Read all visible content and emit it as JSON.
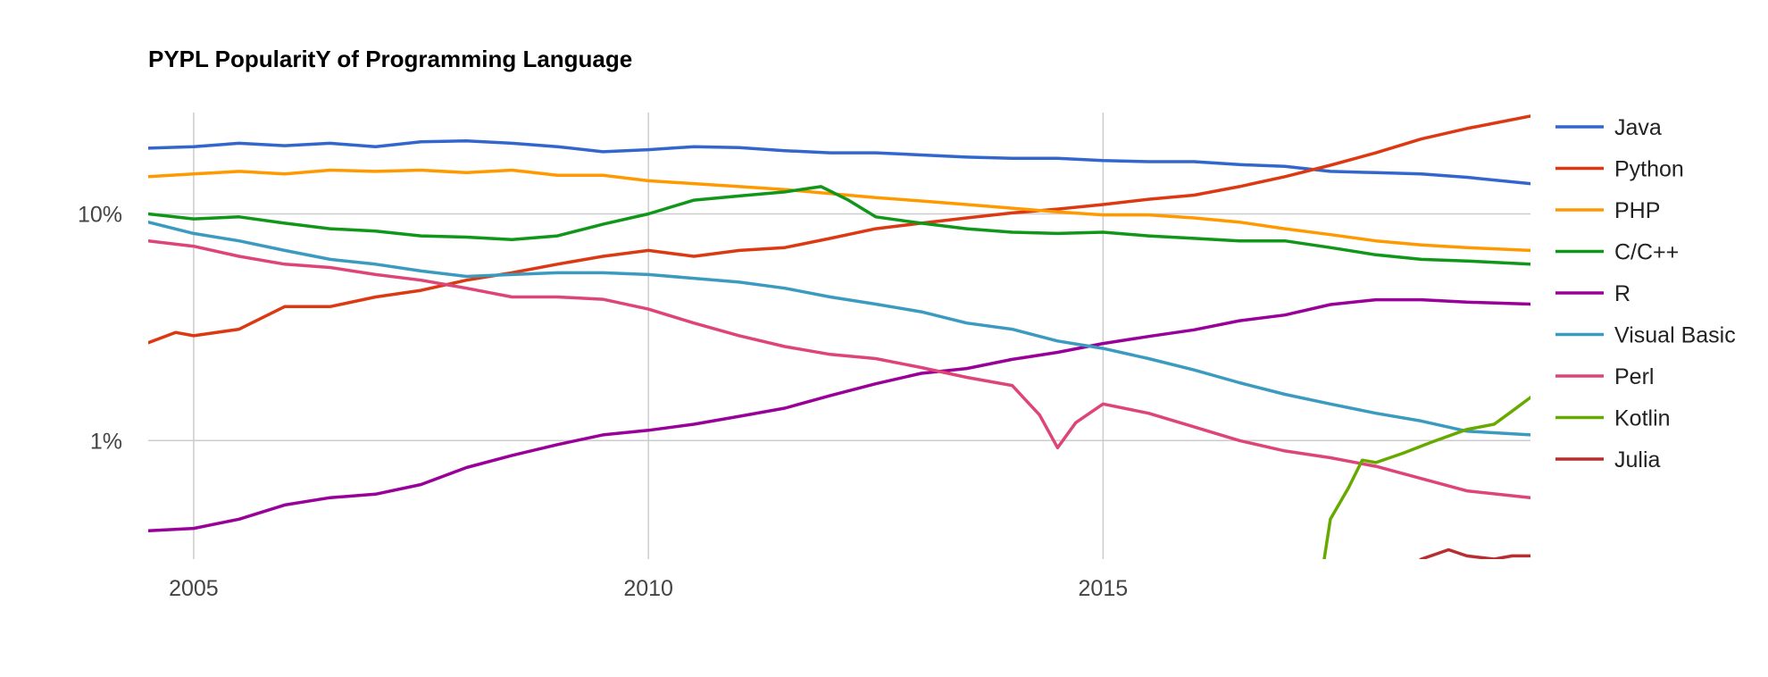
{
  "chart_data": {
    "type": "line",
    "title": "PYPL PopularitY of Programming Language",
    "xlabel": "",
    "ylabel": "",
    "y_scale": "log",
    "x_range": [
      2004.5,
      2019.7
    ],
    "y_range": [
      0.3,
      28
    ],
    "x_ticks": [
      {
        "value": 2005,
        "label": "2005"
      },
      {
        "value": 2010,
        "label": "2010"
      },
      {
        "value": 2015,
        "label": "2015"
      }
    ],
    "y_ticks": [
      {
        "value": 10,
        "label": "10%"
      },
      {
        "value": 1,
        "label": "1%"
      }
    ],
    "grid": true,
    "legend_position": "right",
    "series": [
      {
        "name": "Java",
        "color": "#3366CC",
        "points": [
          [
            2004.5,
            19.5
          ],
          [
            2005,
            19.8
          ],
          [
            2005.5,
            20.5
          ],
          [
            2006,
            20
          ],
          [
            2006.5,
            20.5
          ],
          [
            2007,
            19.8
          ],
          [
            2007.5,
            20.8
          ],
          [
            2008,
            21
          ],
          [
            2008.5,
            20.5
          ],
          [
            2009,
            19.8
          ],
          [
            2009.5,
            18.8
          ],
          [
            2010,
            19.2
          ],
          [
            2010.5,
            19.8
          ],
          [
            2011,
            19.6
          ],
          [
            2011.5,
            19
          ],
          [
            2012,
            18.6
          ],
          [
            2012.5,
            18.6
          ],
          [
            2013,
            18.2
          ],
          [
            2013.5,
            17.8
          ],
          [
            2014,
            17.6
          ],
          [
            2014.5,
            17.6
          ],
          [
            2015,
            17.2
          ],
          [
            2015.5,
            17
          ],
          [
            2016,
            17
          ],
          [
            2016.5,
            16.5
          ],
          [
            2017,
            16.2
          ],
          [
            2017.5,
            15.4
          ],
          [
            2018,
            15.2
          ],
          [
            2018.5,
            15
          ],
          [
            2019,
            14.5
          ],
          [
            2019.7,
            13.6
          ]
        ]
      },
      {
        "name": "Python",
        "color": "#DC3912",
        "points": [
          [
            2004.5,
            2.7
          ],
          [
            2004.8,
            3.0
          ],
          [
            2005,
            2.9
          ],
          [
            2005.5,
            3.1
          ],
          [
            2006,
            3.9
          ],
          [
            2006.5,
            3.9
          ],
          [
            2007,
            4.3
          ],
          [
            2007.5,
            4.6
          ],
          [
            2008,
            5.1
          ],
          [
            2008.5,
            5.5
          ],
          [
            2009,
            6.0
          ],
          [
            2009.5,
            6.5
          ],
          [
            2010,
            6.9
          ],
          [
            2010.5,
            6.5
          ],
          [
            2011,
            6.9
          ],
          [
            2011.5,
            7.1
          ],
          [
            2012,
            7.8
          ],
          [
            2012.5,
            8.6
          ],
          [
            2013,
            9.1
          ],
          [
            2013.5,
            9.6
          ],
          [
            2014,
            10.1
          ],
          [
            2014.5,
            10.5
          ],
          [
            2015,
            11.0
          ],
          [
            2015.5,
            11.6
          ],
          [
            2016,
            12.1
          ],
          [
            2016.5,
            13.2
          ],
          [
            2017,
            14.6
          ],
          [
            2017.5,
            16.4
          ],
          [
            2018,
            18.6
          ],
          [
            2018.5,
            21.4
          ],
          [
            2019,
            23.8
          ],
          [
            2019.7,
            27.0
          ]
        ]
      },
      {
        "name": "PHP",
        "color": "#FF9900",
        "points": [
          [
            2004.5,
            14.6
          ],
          [
            2005,
            15.0
          ],
          [
            2005.5,
            15.4
          ],
          [
            2006,
            15.0
          ],
          [
            2006.5,
            15.6
          ],
          [
            2007,
            15.4
          ],
          [
            2007.5,
            15.6
          ],
          [
            2008,
            15.2
          ],
          [
            2008.5,
            15.6
          ],
          [
            2009,
            14.8
          ],
          [
            2009.5,
            14.8
          ],
          [
            2010,
            14.0
          ],
          [
            2010.5,
            13.6
          ],
          [
            2011,
            13.2
          ],
          [
            2011.5,
            12.8
          ],
          [
            2012,
            12.3
          ],
          [
            2012.5,
            11.8
          ],
          [
            2013,
            11.4
          ],
          [
            2013.5,
            11.0
          ],
          [
            2014,
            10.6
          ],
          [
            2014.5,
            10.2
          ],
          [
            2015,
            9.9
          ],
          [
            2015.5,
            9.9
          ],
          [
            2016,
            9.6
          ],
          [
            2016.5,
            9.2
          ],
          [
            2017,
            8.6
          ],
          [
            2017.5,
            8.1
          ],
          [
            2018,
            7.6
          ],
          [
            2018.5,
            7.3
          ],
          [
            2019,
            7.1
          ],
          [
            2019.7,
            6.9
          ]
        ]
      },
      {
        "name": "C/C++",
        "color": "#109618",
        "points": [
          [
            2004.5,
            10.0
          ],
          [
            2005,
            9.5
          ],
          [
            2005.5,
            9.7
          ],
          [
            2006,
            9.1
          ],
          [
            2006.5,
            8.6
          ],
          [
            2007,
            8.4
          ],
          [
            2007.5,
            8.0
          ],
          [
            2008,
            7.9
          ],
          [
            2008.5,
            7.7
          ],
          [
            2009,
            8.0
          ],
          [
            2009.5,
            9.0
          ],
          [
            2010,
            10.0
          ],
          [
            2010.5,
            11.5
          ],
          [
            2011,
            12.0
          ],
          [
            2011.5,
            12.5
          ],
          [
            2011.9,
            13.2
          ],
          [
            2012.2,
            11.5
          ],
          [
            2012.5,
            9.7
          ],
          [
            2013,
            9.1
          ],
          [
            2013.5,
            8.6
          ],
          [
            2014,
            8.3
          ],
          [
            2014.5,
            8.2
          ],
          [
            2015,
            8.3
          ],
          [
            2015.5,
            8.0
          ],
          [
            2016,
            7.8
          ],
          [
            2016.5,
            7.6
          ],
          [
            2017,
            7.6
          ],
          [
            2017.5,
            7.1
          ],
          [
            2018,
            6.6
          ],
          [
            2018.5,
            6.3
          ],
          [
            2019,
            6.2
          ],
          [
            2019.7,
            6.0
          ]
        ]
      },
      {
        "name": "R",
        "color": "#990099",
        "points": [
          [
            2004.5,
            0.4
          ],
          [
            2005,
            0.41
          ],
          [
            2005.5,
            0.45
          ],
          [
            2006,
            0.52
          ],
          [
            2006.5,
            0.56
          ],
          [
            2007,
            0.58
          ],
          [
            2007.5,
            0.64
          ],
          [
            2008,
            0.76
          ],
          [
            2008.5,
            0.86
          ],
          [
            2009,
            0.96
          ],
          [
            2009.5,
            1.06
          ],
          [
            2010,
            1.11
          ],
          [
            2010.5,
            1.18
          ],
          [
            2011,
            1.28
          ],
          [
            2011.5,
            1.39
          ],
          [
            2012,
            1.58
          ],
          [
            2012.5,
            1.78
          ],
          [
            2013,
            1.98
          ],
          [
            2013.5,
            2.08
          ],
          [
            2014,
            2.28
          ],
          [
            2014.5,
            2.45
          ],
          [
            2015,
            2.68
          ],
          [
            2015.5,
            2.88
          ],
          [
            2016,
            3.08
          ],
          [
            2016.5,
            3.38
          ],
          [
            2017,
            3.58
          ],
          [
            2017.5,
            3.98
          ],
          [
            2018,
            4.18
          ],
          [
            2018.5,
            4.18
          ],
          [
            2019,
            4.08
          ],
          [
            2019.7,
            4.0
          ]
        ]
      },
      {
        "name": "Visual Basic",
        "color": "#3B9ABF",
        "points": [
          [
            2004.5,
            9.2
          ],
          [
            2005,
            8.2
          ],
          [
            2005.5,
            7.6
          ],
          [
            2006,
            6.9
          ],
          [
            2006.5,
            6.3
          ],
          [
            2007,
            6.0
          ],
          [
            2007.5,
            5.6
          ],
          [
            2008,
            5.3
          ],
          [
            2008.5,
            5.4
          ],
          [
            2009,
            5.5
          ],
          [
            2009.5,
            5.5
          ],
          [
            2010,
            5.4
          ],
          [
            2010.5,
            5.2
          ],
          [
            2011,
            5.0
          ],
          [
            2011.5,
            4.7
          ],
          [
            2012,
            4.3
          ],
          [
            2012.5,
            4.0
          ],
          [
            2013,
            3.7
          ],
          [
            2013.5,
            3.3
          ],
          [
            2014,
            3.1
          ],
          [
            2014.5,
            2.75
          ],
          [
            2015,
            2.55
          ],
          [
            2015.5,
            2.3
          ],
          [
            2016,
            2.05
          ],
          [
            2016.5,
            1.8
          ],
          [
            2017,
            1.6
          ],
          [
            2017.5,
            1.45
          ],
          [
            2018,
            1.32
          ],
          [
            2018.5,
            1.22
          ],
          [
            2019,
            1.1
          ],
          [
            2019.7,
            1.06
          ]
        ]
      },
      {
        "name": "Perl",
        "color": "#DD4477",
        "points": [
          [
            2004.5,
            7.6
          ],
          [
            2005,
            7.2
          ],
          [
            2005.5,
            6.5
          ],
          [
            2006,
            6.0
          ],
          [
            2006.5,
            5.8
          ],
          [
            2007,
            5.4
          ],
          [
            2007.5,
            5.1
          ],
          [
            2008,
            4.7
          ],
          [
            2008.5,
            4.3
          ],
          [
            2009,
            4.3
          ],
          [
            2009.5,
            4.2
          ],
          [
            2010,
            3.8
          ],
          [
            2010.5,
            3.3
          ],
          [
            2011,
            2.9
          ],
          [
            2011.5,
            2.6
          ],
          [
            2012,
            2.4
          ],
          [
            2012.5,
            2.3
          ],
          [
            2013,
            2.1
          ],
          [
            2013.5,
            1.9
          ],
          [
            2014,
            1.75
          ],
          [
            2014.3,
            1.3
          ],
          [
            2014.5,
            0.93
          ],
          [
            2014.7,
            1.2
          ],
          [
            2015,
            1.45
          ],
          [
            2015.5,
            1.32
          ],
          [
            2016,
            1.15
          ],
          [
            2016.5,
            1.0
          ],
          [
            2017,
            0.9
          ],
          [
            2017.5,
            0.84
          ],
          [
            2018,
            0.77
          ],
          [
            2018.5,
            0.68
          ],
          [
            2019,
            0.6
          ],
          [
            2019.7,
            0.56
          ]
        ]
      },
      {
        "name": "Kotlin",
        "color": "#66AA00",
        "points": [
          [
            2017.38,
            0.22
          ],
          [
            2017.5,
            0.45
          ],
          [
            2017.7,
            0.62
          ],
          [
            2017.85,
            0.82
          ],
          [
            2018,
            0.8
          ],
          [
            2018.3,
            0.88
          ],
          [
            2018.6,
            0.98
          ],
          [
            2019,
            1.12
          ],
          [
            2019.3,
            1.18
          ],
          [
            2019.5,
            1.35
          ],
          [
            2019.7,
            1.55
          ]
        ]
      },
      {
        "name": "Julia",
        "color": "#B82E2E",
        "points": [
          [
            2016.4,
            0.28
          ],
          [
            2016.6,
            0.29
          ],
          [
            2016.8,
            0.27
          ],
          [
            2017.5,
            0.275
          ],
          [
            2018,
            0.27
          ],
          [
            2018.3,
            0.26
          ],
          [
            2018.5,
            0.3
          ],
          [
            2018.8,
            0.33
          ],
          [
            2019,
            0.31
          ],
          [
            2019.3,
            0.3
          ],
          [
            2019.5,
            0.31
          ],
          [
            2019.7,
            0.31
          ]
        ]
      }
    ]
  }
}
